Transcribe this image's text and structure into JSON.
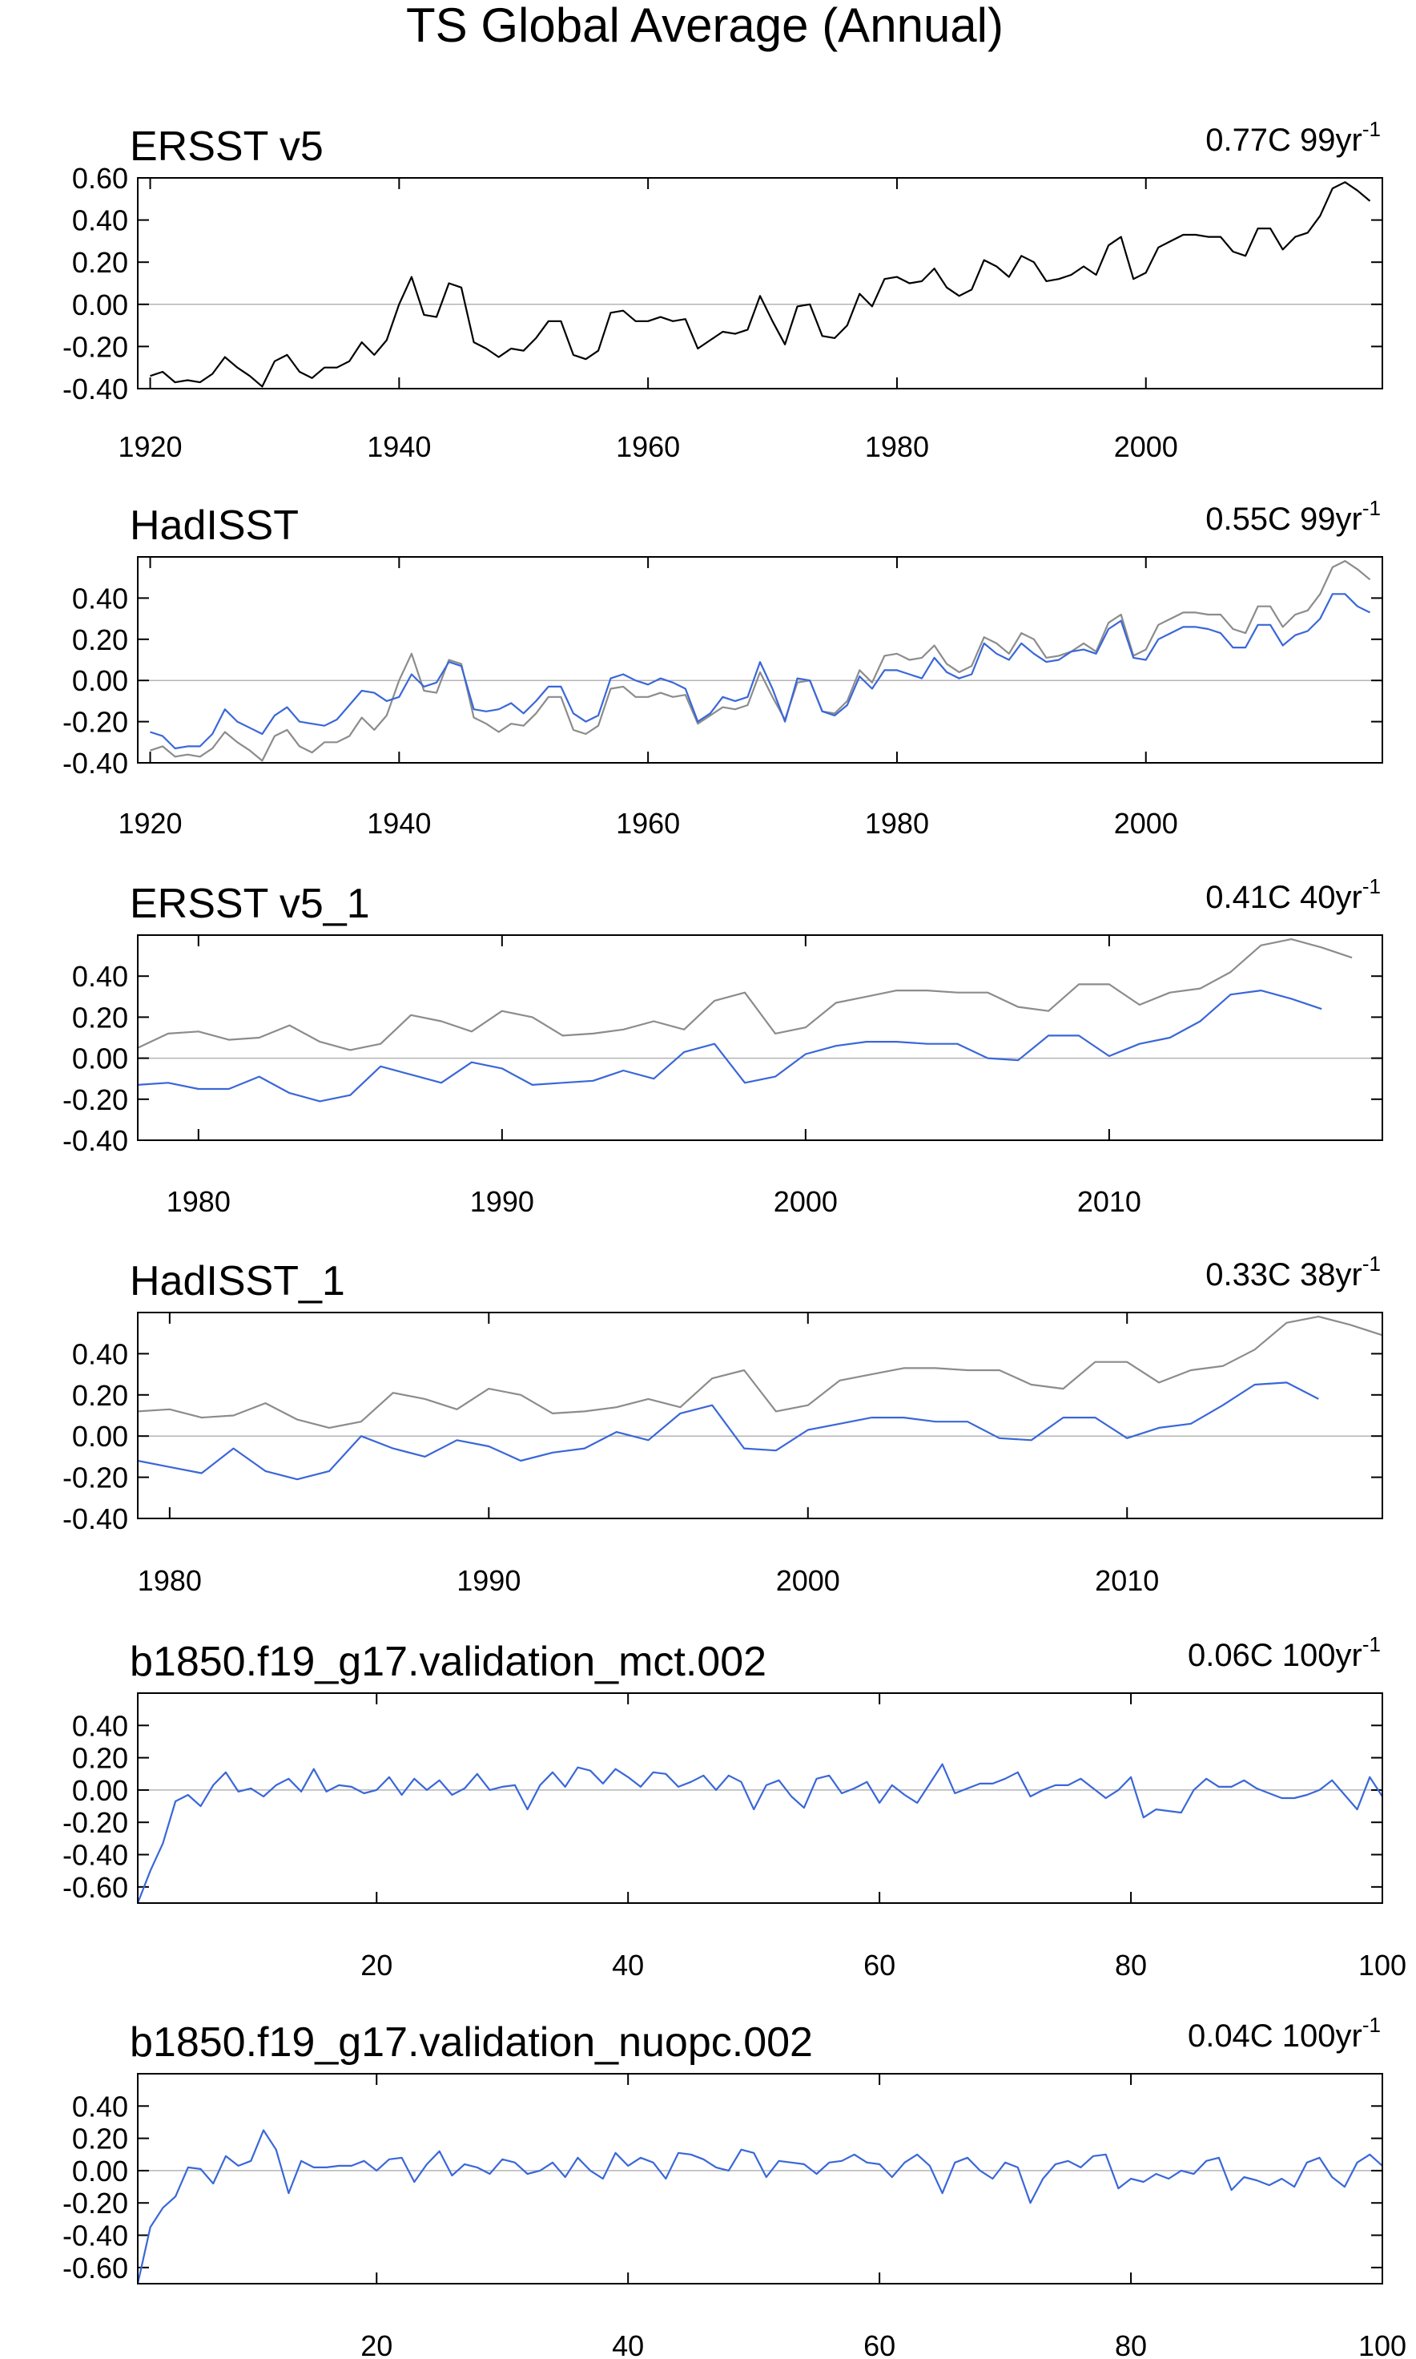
{
  "page": {
    "title": "TS Global Average (Annual)"
  },
  "colors": {
    "observation_black": "#000000",
    "observation_gray": "#8c8c8c",
    "model_blue": "#3a67d8",
    "zero_line": "#b4b4b4"
  },
  "chart_data": [
    {
      "type": "line",
      "title": "ERSST v5",
      "trend_value": "0.77C 99yr",
      "trend_exponent": "-1",
      "xlim": [
        1919,
        2019
      ],
      "ylim": [
        -0.4,
        0.6
      ],
      "yticks": [
        -0.4,
        -0.2,
        0.0,
        0.2,
        0.4,
        0.6
      ],
      "ytick_labels": [
        "-0.40",
        "-0.20",
        "0.00",
        "0.20",
        "0.40",
        "0.60"
      ],
      "xticks": [
        1920,
        1940,
        1960,
        1980,
        2000
      ],
      "xtick_labels": [
        "1920",
        "1940",
        "1960",
        "1980",
        "2000"
      ],
      "x_start": 1920,
      "series": [
        {
          "color": "#000000",
          "values": [
            -0.34,
            -0.32,
            -0.37,
            -0.36,
            -0.37,
            -0.33,
            -0.25,
            -0.3,
            -0.34,
            -0.39,
            -0.27,
            -0.24,
            -0.32,
            -0.35,
            -0.3,
            -0.3,
            -0.27,
            -0.18,
            -0.24,
            -0.17,
            0.0,
            0.13,
            -0.05,
            -0.06,
            0.1,
            0.08,
            -0.18,
            -0.21,
            -0.25,
            -0.21,
            -0.22,
            -0.16,
            -0.08,
            -0.08,
            -0.24,
            -0.26,
            -0.22,
            -0.04,
            -0.03,
            -0.08,
            -0.08,
            -0.06,
            -0.08,
            -0.07,
            -0.21,
            -0.17,
            -0.13,
            -0.14,
            -0.12,
            0.04,
            -0.08,
            -0.19,
            -0.01,
            0.0,
            -0.15,
            -0.16,
            -0.1,
            0.05,
            -0.01,
            0.12,
            0.13,
            0.1,
            0.11,
            0.17,
            0.08,
            0.04,
            0.07,
            0.21,
            0.18,
            0.13,
            0.23,
            0.2,
            0.11,
            0.12,
            0.14,
            0.18,
            0.14,
            0.28,
            0.32,
            0.12,
            0.15,
            0.27,
            0.3,
            0.33,
            0.33,
            0.32,
            0.32,
            0.25,
            0.23,
            0.36,
            0.36,
            0.26,
            0.32,
            0.34,
            0.42,
            0.55,
            0.58,
            0.54,
            0.49
          ]
        }
      ]
    },
    {
      "type": "line",
      "title": "HadISST",
      "trend_value": "0.55C 99yr",
      "trend_exponent": "-1",
      "xlim": [
        1919,
        2019
      ],
      "ylim": [
        -0.4,
        0.6
      ],
      "yticks": [
        -0.4,
        -0.2,
        0.0,
        0.2,
        0.4
      ],
      "ytick_labels": [
        "-0.40",
        "-0.20",
        "0.00",
        "0.20",
        "0.40"
      ],
      "xticks": [
        1920,
        1940,
        1960,
        1980,
        2000
      ],
      "xtick_labels": [
        "1920",
        "1940",
        "1960",
        "1980",
        "2000"
      ],
      "x_start": 1920,
      "series": [
        {
          "color": "#8c8c8c",
          "values": [
            -0.34,
            -0.32,
            -0.37,
            -0.36,
            -0.37,
            -0.33,
            -0.25,
            -0.3,
            -0.34,
            -0.39,
            -0.27,
            -0.24,
            -0.32,
            -0.35,
            -0.3,
            -0.3,
            -0.27,
            -0.18,
            -0.24,
            -0.17,
            0.0,
            0.13,
            -0.05,
            -0.06,
            0.1,
            0.08,
            -0.18,
            -0.21,
            -0.25,
            -0.21,
            -0.22,
            -0.16,
            -0.08,
            -0.08,
            -0.24,
            -0.26,
            -0.22,
            -0.04,
            -0.03,
            -0.08,
            -0.08,
            -0.06,
            -0.08,
            -0.07,
            -0.21,
            -0.17,
            -0.13,
            -0.14,
            -0.12,
            0.04,
            -0.08,
            -0.19,
            -0.01,
            0.0,
            -0.15,
            -0.16,
            -0.1,
            0.05,
            -0.01,
            0.12,
            0.13,
            0.1,
            0.11,
            0.17,
            0.08,
            0.04,
            0.07,
            0.21,
            0.18,
            0.13,
            0.23,
            0.2,
            0.11,
            0.12,
            0.14,
            0.18,
            0.14,
            0.28,
            0.32,
            0.12,
            0.15,
            0.27,
            0.3,
            0.33,
            0.33,
            0.32,
            0.32,
            0.25,
            0.23,
            0.36,
            0.36,
            0.26,
            0.32,
            0.34,
            0.42,
            0.55,
            0.58,
            0.54,
            0.49
          ]
        },
        {
          "color": "#3a67d8",
          "values": [
            -0.25,
            -0.27,
            -0.33,
            -0.32,
            -0.32,
            -0.26,
            -0.14,
            -0.2,
            -0.23,
            -0.26,
            -0.17,
            -0.13,
            -0.2,
            -0.21,
            -0.22,
            -0.19,
            -0.12,
            -0.05,
            -0.06,
            -0.1,
            -0.08,
            0.03,
            -0.03,
            -0.01,
            0.09,
            0.07,
            -0.14,
            -0.15,
            -0.14,
            -0.11,
            -0.16,
            -0.1,
            -0.03,
            -0.03,
            -0.16,
            -0.2,
            -0.17,
            0.01,
            0.03,
            0.0,
            -0.02,
            0.01,
            -0.01,
            -0.04,
            -0.2,
            -0.16,
            -0.08,
            -0.1,
            -0.08,
            0.09,
            -0.04,
            -0.2,
            0.01,
            0.0,
            -0.15,
            -0.17,
            -0.12,
            0.02,
            -0.04,
            0.05,
            0.05,
            0.03,
            0.01,
            0.11,
            0.04,
            0.01,
            0.03,
            0.18,
            0.13,
            0.1,
            0.18,
            0.13,
            0.09,
            0.1,
            0.14,
            0.15,
            0.13,
            0.25,
            0.29,
            0.11,
            0.1,
            0.2,
            0.23,
            0.26,
            0.26,
            0.25,
            0.23,
            0.16,
            0.16,
            0.27,
            0.27,
            0.17,
            0.22,
            0.24,
            0.3,
            0.42,
            0.42,
            0.36,
            0.33
          ]
        }
      ]
    },
    {
      "type": "line",
      "title": "ERSST v5_1",
      "trend_value": "0.41C 40yr",
      "trend_exponent": "-1",
      "xlim": [
        1978,
        2019
      ],
      "ylim": [
        -0.4,
        0.6
      ],
      "yticks": [
        -0.4,
        -0.2,
        0.0,
        0.2,
        0.4
      ],
      "ytick_labels": [
        "-0.40",
        "-0.20",
        "0.00",
        "0.20",
        "0.40"
      ],
      "xticks": [
        1980,
        1990,
        2000,
        2010
      ],
      "xtick_labels": [
        "1980",
        "1990",
        "2000",
        "2010"
      ],
      "x_start": 1978,
      "series": [
        {
          "color": "#8c8c8c",
          "values": [
            0.05,
            0.12,
            0.13,
            0.09,
            0.1,
            0.16,
            0.08,
            0.04,
            0.07,
            0.21,
            0.18,
            0.13,
            0.23,
            0.2,
            0.11,
            0.12,
            0.14,
            0.18,
            0.14,
            0.28,
            0.32,
            0.12,
            0.15,
            0.27,
            0.3,
            0.33,
            0.33,
            0.32,
            0.32,
            0.25,
            0.23,
            0.36,
            0.36,
            0.26,
            0.32,
            0.34,
            0.42,
            0.55,
            0.58,
            0.54,
            0.49
          ]
        },
        {
          "color": "#3a67d8",
          "values": [
            -0.13,
            -0.12,
            -0.15,
            -0.15,
            -0.09,
            -0.17,
            -0.21,
            -0.18,
            -0.04,
            -0.08,
            -0.12,
            -0.02,
            -0.05,
            -0.13,
            -0.12,
            -0.11,
            -0.06,
            -0.1,
            0.03,
            0.07,
            -0.12,
            -0.09,
            0.02,
            0.06,
            0.08,
            0.08,
            0.07,
            0.07,
            0.0,
            -0.01,
            0.11,
            0.11,
            0.01,
            0.07,
            0.1,
            0.18,
            0.31,
            0.33,
            0.29,
            0.24
          ]
        }
      ]
    },
    {
      "type": "line",
      "title": "HadISST_1",
      "trend_value": "0.33C 38yr",
      "trend_exponent": "-1",
      "xlim": [
        1979,
        2018
      ],
      "ylim": [
        -0.4,
        0.6
      ],
      "yticks": [
        -0.4,
        -0.2,
        0.0,
        0.2,
        0.4
      ],
      "ytick_labels": [
        "-0.40",
        "-0.20",
        "0.00",
        "0.20",
        "0.40"
      ],
      "xticks": [
        1980,
        1990,
        2000,
        2010
      ],
      "xtick_labels": [
        "1980",
        "1990",
        "2000",
        "2010"
      ],
      "x_start": 1979,
      "series": [
        {
          "color": "#8c8c8c",
          "values": [
            0.12,
            0.13,
            0.09,
            0.1,
            0.16,
            0.08,
            0.04,
            0.07,
            0.21,
            0.18,
            0.13,
            0.23,
            0.2,
            0.11,
            0.12,
            0.14,
            0.18,
            0.14,
            0.28,
            0.32,
            0.12,
            0.15,
            0.27,
            0.3,
            0.33,
            0.33,
            0.32,
            0.32,
            0.25,
            0.23,
            0.36,
            0.36,
            0.26,
            0.32,
            0.34,
            0.42,
            0.55,
            0.58,
            0.54,
            0.49
          ]
        },
        {
          "color": "#3a67d8",
          "values": [
            -0.12,
            -0.15,
            -0.18,
            -0.06,
            -0.17,
            -0.21,
            -0.17,
            0.0,
            -0.06,
            -0.1,
            -0.02,
            -0.05,
            -0.12,
            -0.08,
            -0.06,
            0.02,
            -0.02,
            0.11,
            0.15,
            -0.06,
            -0.07,
            0.03,
            0.06,
            0.09,
            0.09,
            0.07,
            0.07,
            -0.01,
            -0.02,
            0.09,
            0.09,
            -0.01,
            0.04,
            0.06,
            0.15,
            0.25,
            0.26,
            0.18
          ]
        }
      ]
    },
    {
      "type": "line",
      "title": "b1850.f19_g17.validation_mct.002",
      "trend_value": "0.06C 100yr",
      "trend_exponent": "-1",
      "xlim": [
        1,
        100
      ],
      "ylim": [
        -0.7,
        0.6
      ],
      "yticks": [
        -0.6,
        -0.4,
        -0.2,
        0.0,
        0.2,
        0.4
      ],
      "ytick_labels": [
        "-0.60",
        "-0.40",
        "-0.20",
        "0.00",
        "0.20",
        "0.40"
      ],
      "xticks": [
        20,
        40,
        60,
        80,
        100
      ],
      "xtick_labels": [
        "20",
        "40",
        "60",
        "80",
        "100"
      ],
      "x_start": 1,
      "series": [
        {
          "color": "#3a67d8",
          "values": [
            -0.7,
            -0.5,
            -0.33,
            -0.07,
            -0.03,
            -0.1,
            0.03,
            0.11,
            -0.01,
            0.01,
            -0.04,
            0.03,
            0.07,
            -0.01,
            0.13,
            -0.01,
            0.03,
            0.02,
            -0.02,
            0.0,
            0.08,
            -0.03,
            0.07,
            0.0,
            0.06,
            -0.03,
            0.01,
            0.1,
            0.0,
            0.02,
            0.03,
            -0.12,
            0.03,
            0.11,
            0.02,
            0.14,
            0.12,
            0.04,
            0.13,
            0.08,
            0.02,
            0.11,
            0.1,
            0.02,
            0.05,
            0.09,
            0.0,
            0.09,
            0.05,
            -0.12,
            0.03,
            0.06,
            -0.04,
            -0.11,
            0.07,
            0.09,
            -0.02,
            0.01,
            0.05,
            -0.08,
            0.03,
            -0.03,
            -0.08,
            0.04,
            0.16,
            -0.02,
            0.01,
            0.04,
            0.04,
            0.07,
            0.11,
            -0.04,
            0.0,
            0.03,
            0.03,
            0.07,
            0.01,
            -0.05,
            0.0,
            0.08,
            -0.17,
            -0.12,
            -0.13,
            -0.14,
            0.0,
            0.07,
            0.02,
            0.02,
            0.06,
            0.01,
            -0.02,
            -0.05,
            -0.05,
            -0.03,
            0.0,
            0.06,
            -0.03,
            -0.12,
            0.08,
            -0.04
          ]
        }
      ]
    },
    {
      "type": "line",
      "title": "b1850.f19_g17.validation_nuopc.002",
      "trend_value": "0.04C 100yr",
      "trend_exponent": "-1",
      "xlim": [
        1,
        100
      ],
      "ylim": [
        -0.7,
        0.6
      ],
      "yticks": [
        -0.6,
        -0.4,
        -0.2,
        0.0,
        0.2,
        0.4
      ],
      "ytick_labels": [
        "-0.60",
        "-0.40",
        "-0.20",
        "0.00",
        "0.20",
        "0.40"
      ],
      "xticks": [
        20,
        40,
        60,
        80,
        100
      ],
      "xtick_labels": [
        "20",
        "40",
        "60",
        "80",
        "100"
      ],
      "x_start": 1,
      "series": [
        {
          "color": "#3a67d8",
          "values": [
            -0.7,
            -0.35,
            -0.23,
            -0.16,
            0.02,
            0.01,
            -0.08,
            0.09,
            0.03,
            0.06,
            0.25,
            0.13,
            -0.14,
            0.06,
            0.02,
            0.02,
            0.03,
            0.03,
            0.06,
            0.0,
            0.07,
            0.08,
            -0.07,
            0.04,
            0.12,
            -0.03,
            0.04,
            0.02,
            -0.02,
            0.07,
            0.05,
            -0.02,
            0.0,
            0.05,
            -0.04,
            0.08,
            0.0,
            -0.05,
            0.11,
            0.03,
            0.08,
            0.05,
            -0.05,
            0.11,
            0.1,
            0.07,
            0.02,
            0.0,
            0.13,
            0.11,
            -0.04,
            0.06,
            0.05,
            0.04,
            -0.02,
            0.05,
            0.06,
            0.1,
            0.05,
            0.04,
            -0.04,
            0.05,
            0.1,
            0.03,
            -0.14,
            0.05,
            0.08,
            0.0,
            -0.05,
            0.05,
            0.02,
            -0.2,
            -0.05,
            0.04,
            0.06,
            0.02,
            0.09,
            0.1,
            -0.11,
            -0.05,
            -0.07,
            -0.02,
            -0.05,
            0.0,
            -0.02,
            0.06,
            0.08,
            -0.12,
            -0.04,
            -0.06,
            -0.09,
            -0.05,
            -0.1,
            0.05,
            0.08,
            -0.04,
            -0.1,
            0.05,
            0.1,
            0.03
          ]
        }
      ]
    }
  ]
}
